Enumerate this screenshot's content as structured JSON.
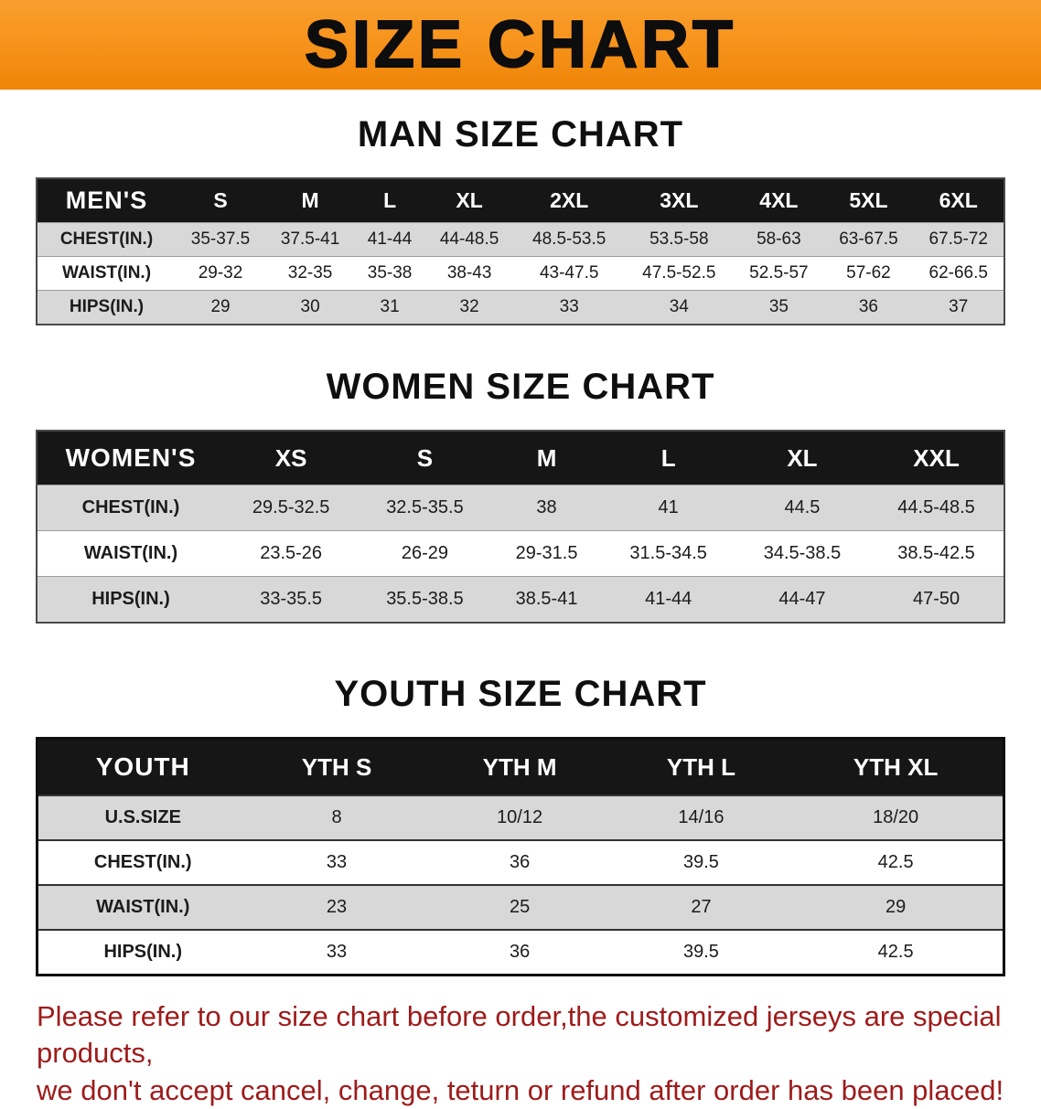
{
  "banner": {
    "title": "SIZE CHART"
  },
  "sections": {
    "men": {
      "heading": "MAN SIZE CHART"
    },
    "women": {
      "heading": "WOMEN SIZE CHART"
    },
    "youth": {
      "heading": "YOUTH SIZE CHART"
    }
  },
  "tables": {
    "men": {
      "header": [
        "MEN'S",
        "S",
        "M",
        "L",
        "XL",
        "2XL",
        "3XL",
        "4XL",
        "5XL",
        "6XL"
      ],
      "rows": [
        [
          "CHEST(IN.)",
          "35-37.5",
          "37.5-41",
          "41-44",
          "44-48.5",
          "48.5-53.5",
          "53.5-58",
          "58-63",
          "63-67.5",
          "67.5-72"
        ],
        [
          "WAIST(IN.)",
          "29-32",
          "32-35",
          "35-38",
          "38-43",
          "43-47.5",
          "47.5-52.5",
          "52.5-57",
          "57-62",
          "62-66.5"
        ],
        [
          "HIPS(IN.)",
          "29",
          "30",
          "31",
          "32",
          "33",
          "34",
          "35",
          "36",
          "37"
        ]
      ]
    },
    "women": {
      "header": [
        "WOMEN'S",
        "XS",
        "S",
        "M",
        "L",
        "XL",
        "XXL"
      ],
      "rows": [
        [
          "CHEST(IN.)",
          "29.5-32.5",
          "32.5-35.5",
          "38",
          "41",
          "44.5",
          "44.5-48.5"
        ],
        [
          "WAIST(IN.)",
          "23.5-26",
          "26-29",
          "29-31.5",
          "31.5-34.5",
          "34.5-38.5",
          "38.5-42.5"
        ],
        [
          "HIPS(IN.)",
          "33-35.5",
          "35.5-38.5",
          "38.5-41",
          "41-44",
          "44-47",
          "47-50"
        ]
      ]
    },
    "youth": {
      "header": [
        "YOUTH",
        "YTH S",
        "YTH M",
        "YTH L",
        "YTH XL"
      ],
      "rows": [
        [
          "U.S.SIZE",
          "8",
          "10/12",
          "14/16",
          "18/20"
        ],
        [
          "CHEST(IN.)",
          "33",
          "36",
          "39.5",
          "42.5"
        ],
        [
          "WAIST(IN.)",
          "23",
          "25",
          "27",
          "29"
        ],
        [
          "HIPS(IN.)",
          "33",
          "36",
          "39.5",
          "42.5"
        ]
      ]
    }
  },
  "footer": {
    "line1": "Please refer to our size chart before order,the customized jerseys are special products,",
    "line2": "we don't accept cancel, change, teturn or refund after order has been placed!"
  },
  "colors": {
    "banner_bg": "#f7941d",
    "header_bg": "#161616",
    "row_stripe": "#d8d8d8",
    "footer_text": "#9e1b1b"
  }
}
